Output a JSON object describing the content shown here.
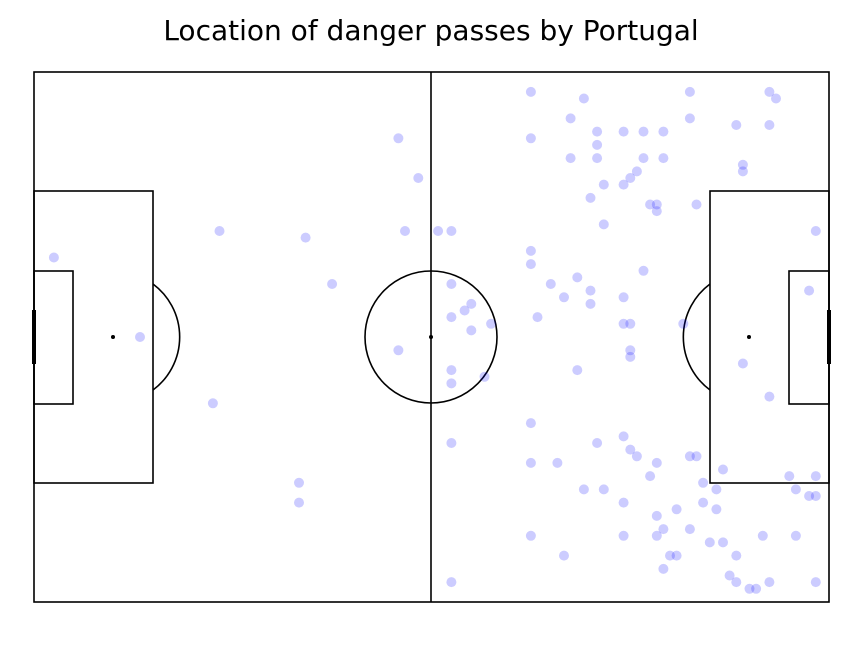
{
  "chart_data": {
    "type": "scatter",
    "title": "Location of danger passes by Portugal",
    "xlabel": "",
    "ylabel": "",
    "xlim": [
      0,
      120
    ],
    "ylim": [
      0,
      80
    ],
    "grid": false,
    "point_color": "#0000ff",
    "series": [
      {
        "points": [
          [
            3,
            52
          ],
          [
            16,
            40
          ],
          [
            27,
            30
          ],
          [
            28,
            56
          ],
          [
            40,
            15
          ],
          [
            41,
            55
          ],
          [
            45,
            48
          ],
          [
            40,
            18
          ],
          [
            55,
            38
          ],
          [
            56,
            56
          ],
          [
            55,
            70
          ],
          [
            58,
            64
          ],
          [
            61,
            56
          ],
          [
            63,
            56
          ],
          [
            63,
            48
          ],
          [
            63,
            43
          ],
          [
            63,
            35
          ],
          [
            63,
            33
          ],
          [
            65,
            44
          ],
          [
            66,
            45
          ],
          [
            66,
            41
          ],
          [
            69,
            42
          ],
          [
            68,
            34
          ],
          [
            63,
            24
          ],
          [
            63,
            3
          ],
          [
            75,
            77
          ],
          [
            75,
            70
          ],
          [
            75,
            53
          ],
          [
            75,
            51
          ],
          [
            76,
            43
          ],
          [
            78,
            48
          ],
          [
            80,
            46
          ],
          [
            81,
            73
          ],
          [
            81,
            67
          ],
          [
            82,
            49
          ],
          [
            82,
            35
          ],
          [
            83,
            76
          ],
          [
            84,
            61
          ],
          [
            84,
            45
          ],
          [
            84,
            47
          ],
          [
            85,
            71
          ],
          [
            85,
            69
          ],
          [
            85,
            67
          ],
          [
            86,
            63
          ],
          [
            86,
            57
          ],
          [
            89,
            71
          ],
          [
            89,
            63
          ],
          [
            89,
            46
          ],
          [
            89,
            42
          ],
          [
            90,
            37
          ],
          [
            90,
            38
          ],
          [
            90,
            42
          ],
          [
            90,
            64
          ],
          [
            91,
            65
          ],
          [
            92,
            50
          ],
          [
            92,
            71
          ],
          [
            92,
            67
          ],
          [
            93,
            60
          ],
          [
            94,
            59
          ],
          [
            94,
            60
          ],
          [
            95,
            71
          ],
          [
            95,
            67
          ],
          [
            98,
            42
          ],
          [
            99,
            77
          ],
          [
            99,
            73
          ],
          [
            100,
            60
          ],
          [
            106,
            72
          ],
          [
            107,
            66
          ],
          [
            107,
            65
          ],
          [
            111,
            77
          ],
          [
            111,
            72
          ],
          [
            112,
            76
          ],
          [
            107,
            36
          ],
          [
            111,
            31
          ],
          [
            118,
            56
          ],
          [
            75,
            27
          ],
          [
            75,
            21
          ],
          [
            75,
            10
          ],
          [
            79,
            21
          ],
          [
            80,
            7
          ],
          [
            83,
            17
          ],
          [
            85,
            24
          ],
          [
            86,
            17
          ],
          [
            89,
            15
          ],
          [
            89,
            10
          ],
          [
            89,
            25
          ],
          [
            90,
            23
          ],
          [
            91,
            22
          ],
          [
            93,
            19
          ],
          [
            94,
            21
          ],
          [
            94,
            13
          ],
          [
            94,
            10
          ],
          [
            95,
            11
          ],
          [
            95,
            5
          ],
          [
            96,
            7
          ],
          [
            97,
            14
          ],
          [
            97,
            7
          ],
          [
            99,
            22
          ],
          [
            99,
            11
          ],
          [
            100,
            22
          ],
          [
            101,
            15
          ],
          [
            101,
            18
          ],
          [
            102,
            9
          ],
          [
            103,
            14
          ],
          [
            103,
            17
          ],
          [
            104,
            20
          ],
          [
            104,
            9
          ],
          [
            105,
            4
          ],
          [
            106,
            7
          ],
          [
            106,
            3
          ],
          [
            108,
            2
          ],
          [
            109,
            2
          ],
          [
            110,
            10
          ],
          [
            111,
            3
          ],
          [
            115,
            17
          ],
          [
            115,
            10
          ],
          [
            114,
            19
          ],
          [
            117,
            16
          ],
          [
            118,
            19
          ],
          [
            118,
            3
          ],
          [
            117,
            47
          ],
          [
            118,
            16
          ]
        ]
      }
    ]
  }
}
